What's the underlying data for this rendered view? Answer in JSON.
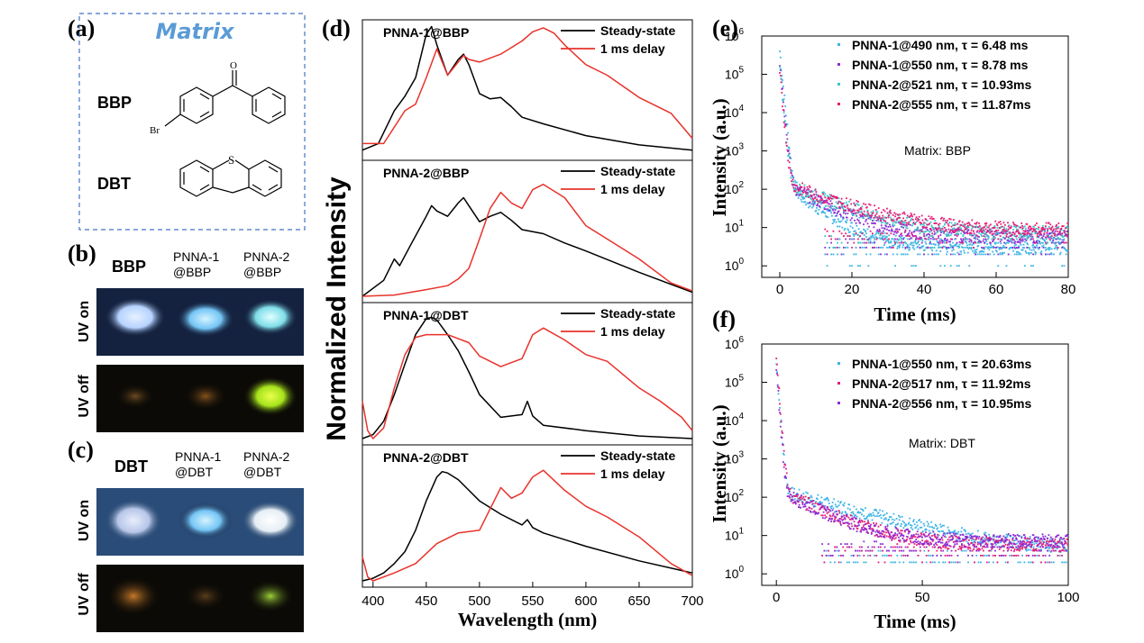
{
  "figure": {
    "panel_labels": [
      "(a)",
      "(b)",
      "(c)",
      "(d)",
      "(e)",
      "(f)"
    ]
  },
  "panel_a": {
    "title": "Matrix",
    "title_color": "#5b9bd5",
    "compounds": [
      "BBP",
      "DBT"
    ],
    "atom_labels": [
      "O",
      "Br",
      "S"
    ]
  },
  "panel_b": {
    "header": "BBP",
    "columns": [
      "PNNA-1\n@BBP",
      "PNNA-2\n@BBP"
    ],
    "rows": [
      "UV on",
      "UV off"
    ]
  },
  "panel_c": {
    "header": "DBT",
    "columns": [
      "PNNA-1\n@DBT",
      "PNNA-2\n@DBT"
    ],
    "rows": [
      "UV on",
      "UV off"
    ]
  },
  "chart_data": [
    {
      "type": "line",
      "panel": "d",
      "xlabel": "Wavelength (nm)",
      "ylabel": "Normalized Intensity",
      "xlim": [
        390,
        700
      ],
      "xticks": [
        400,
        450,
        500,
        550,
        600,
        650,
        700
      ],
      "legend_position": "top-right",
      "series_colors": {
        "Steady-state": "#000000",
        "1 ms delay": "#e8322b"
      },
      "subplots": [
        {
          "title": "PNNA-1@BBP",
          "series": [
            {
              "name": "Steady-state",
              "x": [
                390,
                405,
                420,
                430,
                440,
                450,
                455,
                460,
                470,
                480,
                485,
                490,
                500,
                510,
                520,
                530,
                540,
                560,
                600,
                650,
                700
              ],
              "y": [
                0.05,
                0.1,
                0.35,
                0.46,
                0.6,
                0.93,
                0.99,
                0.85,
                0.62,
                0.74,
                0.78,
                0.7,
                0.48,
                0.44,
                0.45,
                0.38,
                0.3,
                0.25,
                0.16,
                0.09,
                0.05
              ]
            },
            {
              "name": "1 ms delay",
              "x": [
                390,
                410,
                430,
                440,
                450,
                460,
                470,
                480,
                485,
                490,
                500,
                520,
                540,
                550,
                560,
                570,
                580,
                600,
                620,
                650,
                680,
                700
              ],
              "y": [
                0.1,
                0.1,
                0.35,
                0.4,
                0.6,
                0.82,
                0.62,
                0.72,
                0.77,
                0.74,
                0.72,
                0.78,
                0.88,
                0.95,
                0.98,
                0.94,
                0.85,
                0.7,
                0.62,
                0.45,
                0.33,
                0.14
              ]
            }
          ]
        },
        {
          "title": "PNNA-2@BBP",
          "series": [
            {
              "name": "Steady-state",
              "x": [
                390,
                410,
                420,
                425,
                435,
                450,
                455,
                460,
                470,
                480,
                485,
                490,
                500,
                510,
                520,
                530,
                540,
                560,
                580,
                600,
                650,
                700
              ],
              "y": [
                0.02,
                0.14,
                0.3,
                0.25,
                0.4,
                0.62,
                0.7,
                0.66,
                0.62,
                0.72,
                0.76,
                0.7,
                0.58,
                0.62,
                0.65,
                0.59,
                0.52,
                0.49,
                0.42,
                0.36,
                0.2,
                0.05
              ]
            },
            {
              "name": "1 ms delay",
              "x": [
                390,
                420,
                450,
                470,
                480,
                490,
                500,
                510,
                520,
                530,
                540,
                550,
                560,
                580,
                600,
                620,
                650,
                680,
                700
              ],
              "y": [
                0.02,
                0.03,
                0.07,
                0.1,
                0.15,
                0.23,
                0.45,
                0.68,
                0.8,
                0.72,
                0.68,
                0.82,
                0.86,
                0.76,
                0.55,
                0.45,
                0.3,
                0.12,
                0.06
              ]
            }
          ]
        },
        {
          "title": "PNNA-1@DBT",
          "series": [
            {
              "name": "Steady-state",
              "x": [
                390,
                400,
                410,
                420,
                430,
                440,
                450,
                455,
                460,
                470,
                480,
                490,
                500,
                520,
                540,
                545,
                550,
                560,
                600,
                650,
                700
              ],
              "y": [
                0.02,
                0.05,
                0.15,
                0.35,
                0.58,
                0.8,
                0.92,
                0.93,
                0.91,
                0.8,
                0.68,
                0.52,
                0.35,
                0.18,
                0.2,
                0.3,
                0.19,
                0.12,
                0.08,
                0.04,
                0.02
              ]
            },
            {
              "name": "1 ms delay",
              "x": [
                390,
                395,
                400,
                410,
                420,
                430,
                440,
                450,
                470,
                490,
                500,
                520,
                540,
                550,
                560,
                580,
                600,
                620,
                650,
                670,
                690,
                700
              ],
              "y": [
                0.3,
                0.08,
                0.02,
                0.1,
                0.4,
                0.65,
                0.78,
                0.8,
                0.8,
                0.74,
                0.64,
                0.56,
                0.62,
                0.8,
                0.85,
                0.76,
                0.65,
                0.6,
                0.4,
                0.3,
                0.18,
                0.08
              ]
            }
          ]
        },
        {
          "title": "PNNA-2@DBT",
          "series": [
            {
              "name": "Steady-state",
              "x": [
                390,
                400,
                410,
                420,
                430,
                440,
                450,
                460,
                465,
                470,
                480,
                490,
                500,
                520,
                540,
                545,
                550,
                560,
                600,
                650,
                700
              ],
              "y": [
                0.02,
                0.04,
                0.08,
                0.15,
                0.24,
                0.4,
                0.62,
                0.8,
                0.84,
                0.83,
                0.78,
                0.7,
                0.62,
                0.52,
                0.44,
                0.48,
                0.42,
                0.38,
                0.28,
                0.17,
                0.08
              ]
            },
            {
              "name": "1 ms delay",
              "x": [
                390,
                395,
                400,
                420,
                440,
                460,
                480,
                500,
                510,
                520,
                530,
                540,
                550,
                560,
                580,
                600,
                620,
                650,
                680,
                700
              ],
              "y": [
                0.2,
                0.05,
                0.02,
                0.08,
                0.15,
                0.3,
                0.38,
                0.4,
                0.56,
                0.72,
                0.64,
                0.68,
                0.8,
                0.85,
                0.7,
                0.58,
                0.5,
                0.35,
                0.15,
                0.06
              ]
            }
          ]
        }
      ]
    },
    {
      "type": "scatter",
      "panel": "e",
      "xlabel": "Time (ms)",
      "ylabel": "Intensity (a.u.)",
      "xlim": [
        -5,
        80
      ],
      "ylim": [
        0.5,
        1000000
      ],
      "yscale": "log",
      "xticks": [
        0,
        20,
        40,
        60,
        80
      ],
      "yticks": [
        "10^0",
        "10^1",
        "10^2",
        "10^3",
        "10^4",
        "10^5",
        "10^6"
      ],
      "annotation": "Matrix: BBP",
      "series": [
        {
          "name": "PNNA-1@490 nm, τ = 6.48 ms",
          "color": "#3cb4e6",
          "lifetime_ms": 6.48,
          "peak": 400000,
          "floor": 4
        },
        {
          "name": "PNNA-1@550 nm, τ = 8.78 ms",
          "color": "#8e2bd6",
          "lifetime_ms": 8.78,
          "peak": 200000,
          "floor": 7
        },
        {
          "name": "PNNA-2@521 nm, τ = 10.93ms",
          "color": "#3fc1c9",
          "lifetime_ms": 10.93,
          "peak": 150000,
          "floor": 9
        },
        {
          "name": "PNNA-2@555 nm, τ = 11.87ms",
          "color": "#e61e78",
          "lifetime_ms": 11.87,
          "peak": 100000,
          "floor": 11
        }
      ]
    },
    {
      "type": "scatter",
      "panel": "f",
      "xlabel": "Time (ms)",
      "ylabel": "Intensity (a.u.)",
      "xlim": [
        -5,
        100
      ],
      "ylim": [
        0.5,
        1000000
      ],
      "yscale": "log",
      "xticks": [
        0,
        50,
        100
      ],
      "yticks": [
        "10^0",
        "10^1",
        "10^2",
        "10^3",
        "10^4",
        "10^5",
        "10^6"
      ],
      "annotation": "Matrix: DBT",
      "series": [
        {
          "name": "PNNA-1@550 nm, τ = 20.63ms",
          "color": "#3cb4e6",
          "lifetime_ms": 20.63,
          "peak": 300000,
          "floor": 5
        },
        {
          "name": "PNNA-2@517 nm, τ = 11.92ms",
          "color": "#e61e78",
          "lifetime_ms": 11.92,
          "peak": 500000,
          "floor": 7
        },
        {
          "name": "PNNA-2@556 nm, τ = 10.95ms",
          "color": "#8e2bd6",
          "lifetime_ms": 10.95,
          "peak": 200000,
          "floor": 9
        }
      ]
    }
  ]
}
